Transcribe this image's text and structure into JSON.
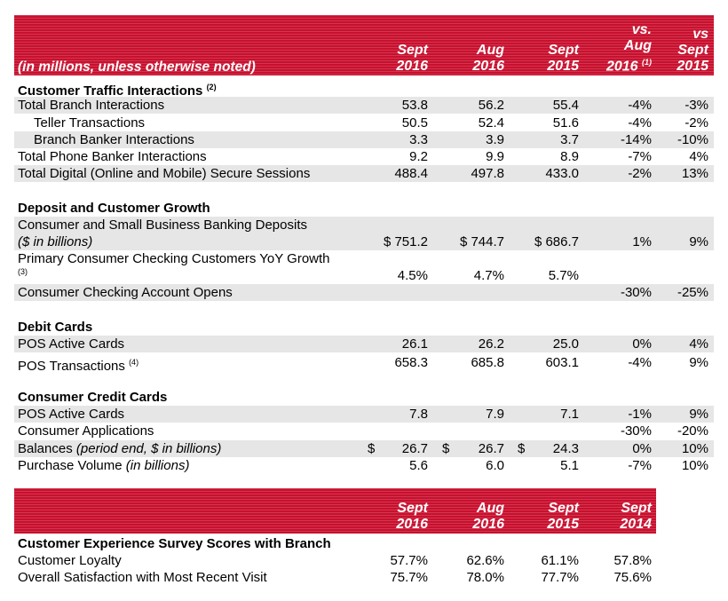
{
  "top_header": {
    "note": "(in millions, unless otherwise noted)",
    "cols": [
      {
        "l1": "Sept",
        "l2": "2016"
      },
      {
        "l1": "Aug",
        "l2": "2016"
      },
      {
        "l1": "Sept",
        "l2": "2015"
      },
      {
        "l1": "vs.",
        "l2a": "Aug",
        "l3": "2016",
        "sup": "(1)"
      },
      {
        "l1": "vs",
        "l2": "Sept",
        "l3": "2015"
      }
    ]
  },
  "sections": {
    "traffic": {
      "title": "Customer Traffic Interactions",
      "sup": "(2)",
      "rows": [
        {
          "label": "Total Branch Interactions",
          "v1": "53.8",
          "v2": "56.2",
          "v3": "55.4",
          "v4": "-4%",
          "v5": "-3%"
        },
        {
          "label": "Teller Transactions",
          "v1": "50.5",
          "v2": "52.4",
          "v3": "51.6",
          "v4": "-4%",
          "v5": "-2%"
        },
        {
          "label": "Branch Banker Interactions",
          "v1": "3.3",
          "v2": "3.9",
          "v3": "3.7",
          "v4": "-14%",
          "v5": "-10%"
        },
        {
          "label": "Total Phone Banker Interactions",
          "v1": "9.2",
          "v2": "9.9",
          "v3": "8.9",
          "v4": "-7%",
          "v5": "4%"
        },
        {
          "label": "Total Digital (Online and Mobile) Secure Sessions",
          "v1": "488.4",
          "v2": "497.8",
          "v3": "433.0",
          "v4": "-2%",
          "v5": "13%"
        }
      ]
    },
    "deposit": {
      "title": "Deposit and Customer Growth",
      "rows": [
        {
          "label": "Consumer and Small Business Banking Deposits",
          "label2": "($ in billions)",
          "v1": "$ 751.2",
          "v2": "$ 744.7",
          "v3": "$ 686.7",
          "v4": "1%",
          "v5": "9%"
        },
        {
          "label": "Primary Consumer Checking Customers YoY Growth",
          "sup": "(3)",
          "v1": "4.5%",
          "v2": "4.7%",
          "v3": "5.7%",
          "v4": "",
          "v5": ""
        },
        {
          "label": "Consumer Checking Account Opens",
          "v1": "",
          "v2": "",
          "v3": "",
          "v4": "-30%",
          "v5": "-25%"
        }
      ]
    },
    "debit": {
      "title": "Debit Cards",
      "rows": [
        {
          "label": "POS Active Cards",
          "v1": "26.1",
          "v2": "26.2",
          "v3": "25.0",
          "v4": "0%",
          "v5": "4%"
        },
        {
          "label": "POS Transactions",
          "sup": "(4)",
          "v1": "658.3",
          "v2": "685.8",
          "v3": "603.1",
          "v4": "-4%",
          "v5": "9%"
        }
      ]
    },
    "credit": {
      "title": "Consumer Credit Cards",
      "rows": [
        {
          "label": "POS Active Cards",
          "v1": "7.8",
          "v2": "7.9",
          "v3": "7.1",
          "v4": "-1%",
          "v5": "9%"
        },
        {
          "label": "Consumer Applications",
          "v1": "",
          "v2": "",
          "v3": "",
          "v4": "-30%",
          "v5": "-20%"
        },
        {
          "label": "Balances",
          "label_italic": "(period end, $ in billions)",
          "dollar": "$",
          "v1": "26.7",
          "v2": "26.7",
          "v3": "24.3",
          "v4": "0%",
          "v5": "10%"
        },
        {
          "label": "Purchase Volume",
          "label_italic": "(in billions)",
          "v1": "5.6",
          "v2": "6.0",
          "v3": "5.1",
          "v4": "-7%",
          "v5": "10%"
        }
      ]
    }
  },
  "bottom_header": {
    "cols": [
      {
        "l1": "Sept",
        "l2": "2016"
      },
      {
        "l1": "Aug",
        "l2": "2016"
      },
      {
        "l1": "Sept",
        "l2": "2015"
      },
      {
        "l1": "Sept",
        "l2": "2014"
      }
    ]
  },
  "survey": {
    "title": "Customer Experience Survey Scores with Branch",
    "rows": [
      {
        "label": "Customer Loyalty",
        "v1": "57.7%",
        "v2": "62.6%",
        "v3": "61.1%",
        "v4": "57.8%"
      },
      {
        "label": "Overall Satisfaction with Most Recent Visit",
        "v1": "75.7%",
        "v2": "78.0%",
        "v3": "77.7%",
        "v4": "75.6%"
      }
    ]
  },
  "colors": {
    "banner": "#c8102e",
    "shade": "#e6e6e6"
  }
}
